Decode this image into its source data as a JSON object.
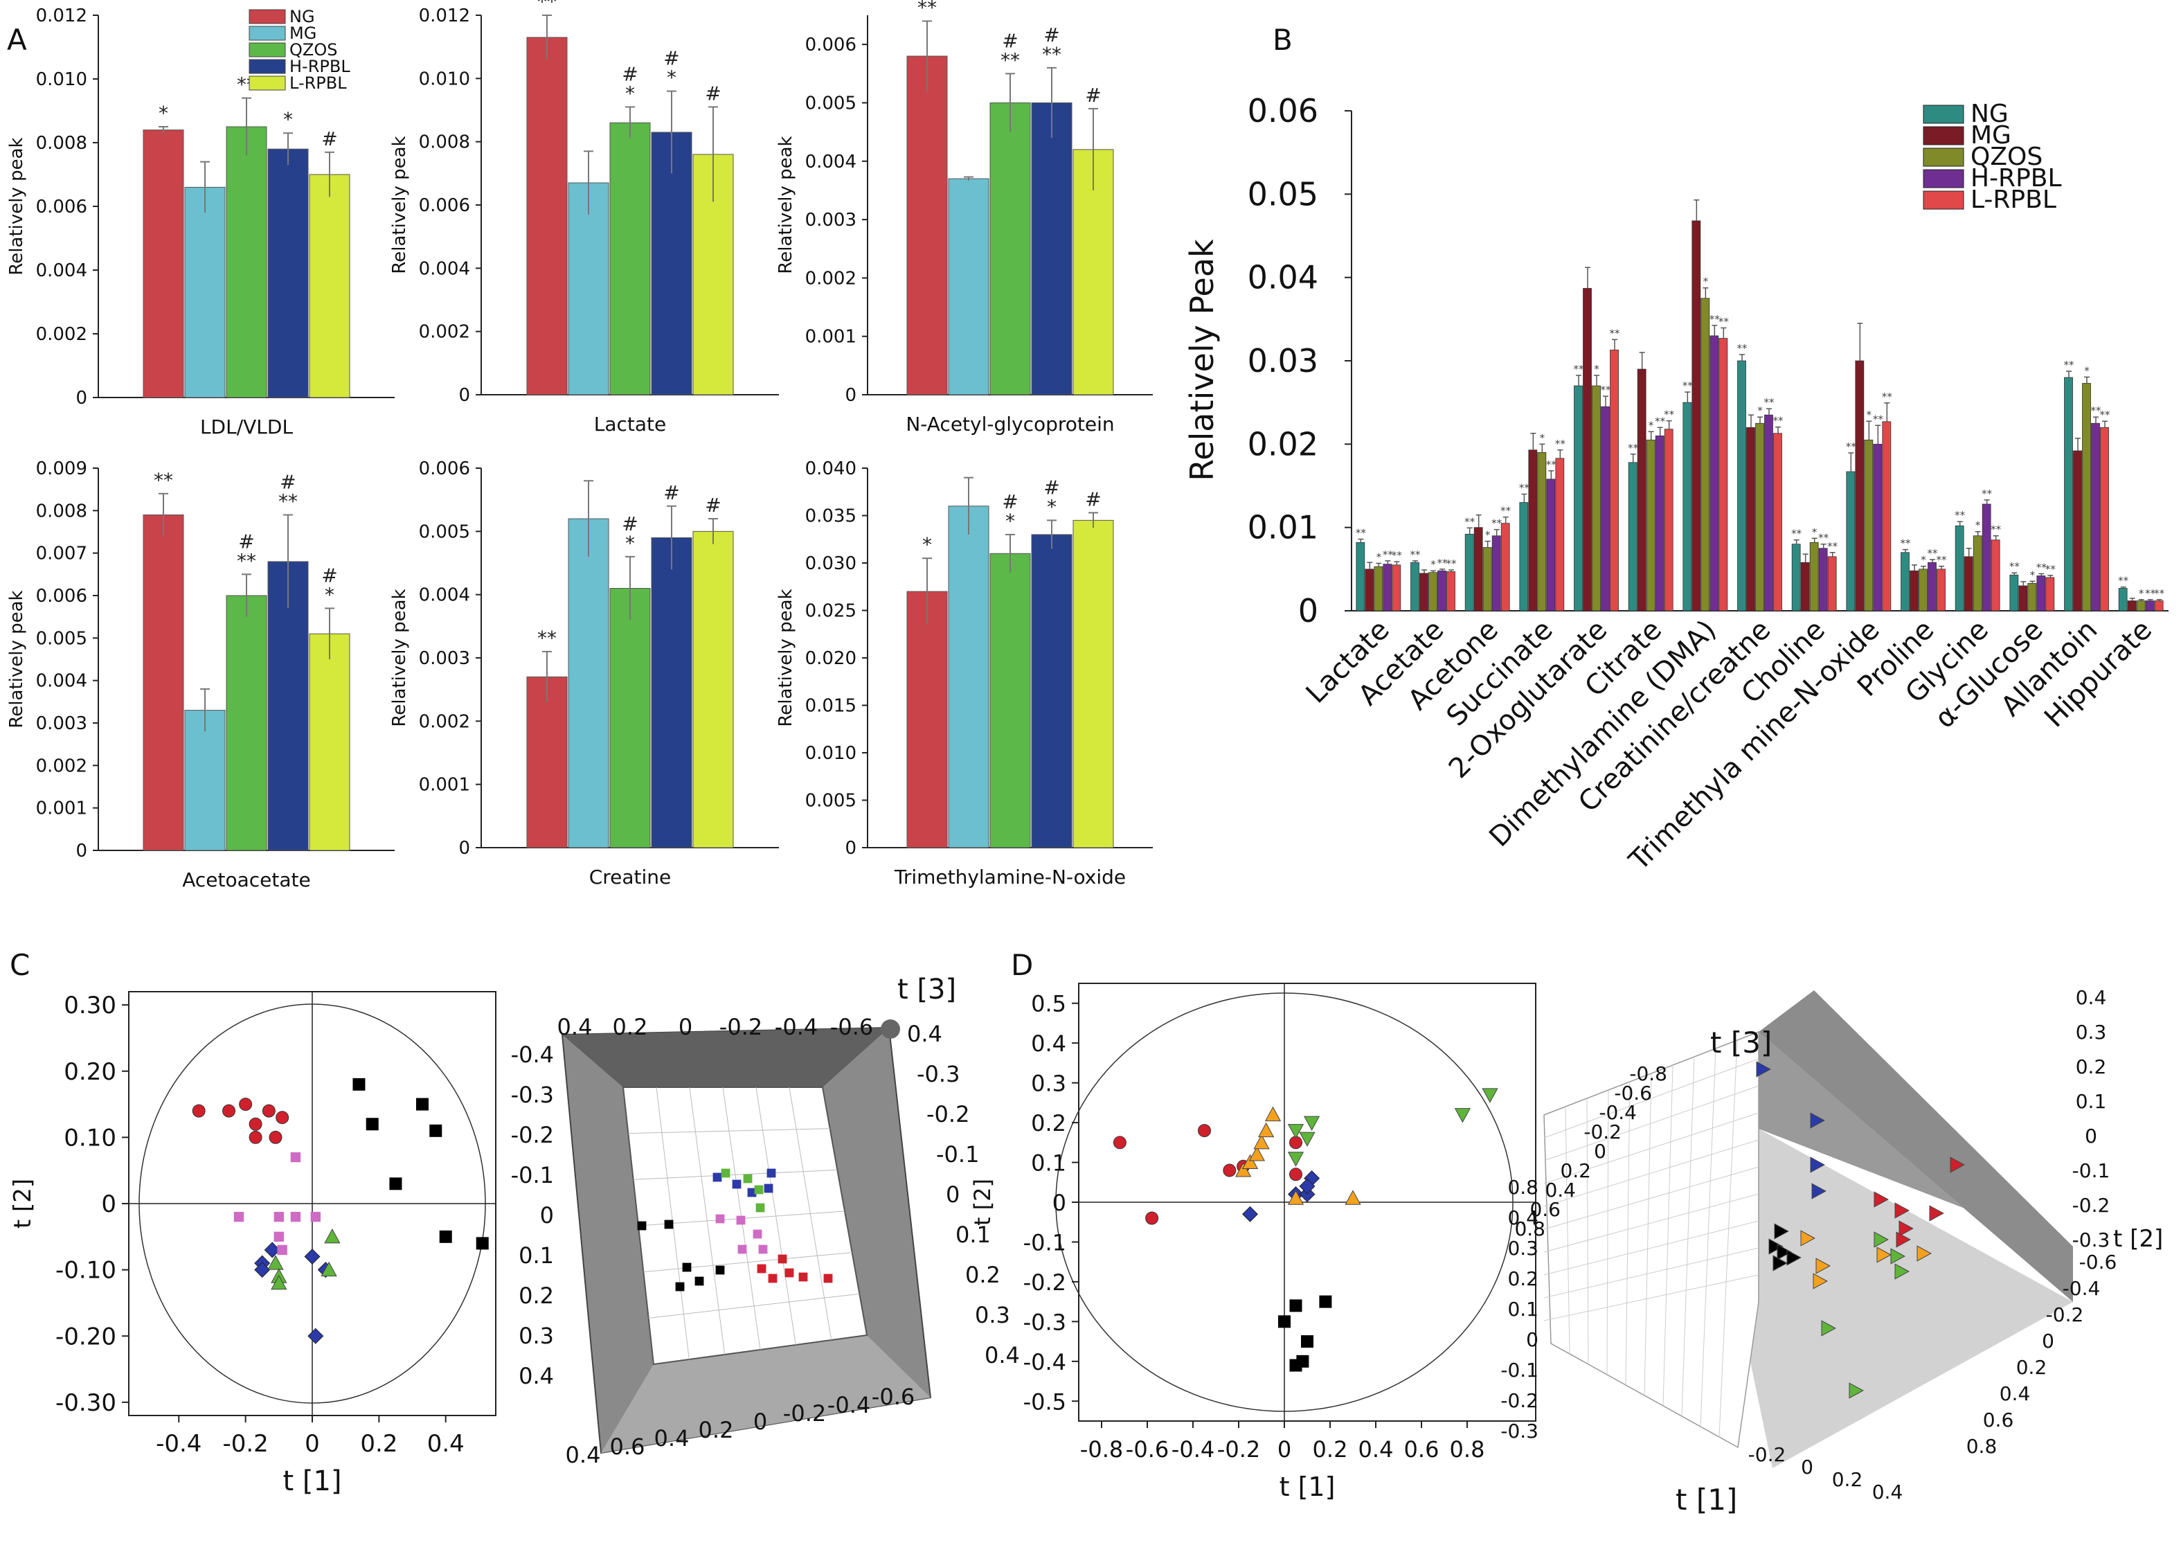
{
  "panel_labels": {
    "A": "A",
    "B": "B",
    "C": "C",
    "D": "D"
  },
  "colors": {
    "A_groups": [
      "#c9434a",
      "#6bbfcf",
      "#5cb848",
      "#27408b",
      "#d5e83c"
    ],
    "B_groups": [
      "#2e8b82",
      "#7b1b25",
      "#808a28",
      "#6f2f92",
      "#e0484a"
    ],
    "score_groups": [
      "#d0202c",
      "#000000",
      "#2b3aa8",
      "#5fb53a",
      "#ce6bc4",
      "#f4a120"
    ]
  },
  "chart_data": [
    {
      "id": "A1",
      "type": "bar",
      "ylabel": "Relatively peak",
      "xlabel": "LDL/VLDL",
      "ylim": [
        0,
        0.012
      ],
      "yticks": [
        "0",
        "0.002",
        "0.004",
        "0.006",
        "0.008",
        "0.010",
        "0.012"
      ],
      "legend": [
        "NG",
        "MG",
        "QZOS",
        "H-RPBL",
        "L-RPBL"
      ],
      "values": [
        0.0084,
        0.0066,
        0.0085,
        0.0078,
        0.007
      ],
      "errors": [
        0.0001,
        0.0008,
        0.0009,
        0.0005,
        0.0007
      ],
      "sig": [
        "*",
        "",
        "**",
        "*",
        "#"
      ]
    },
    {
      "id": "A2",
      "type": "bar",
      "ylabel": "Relatively peak",
      "xlabel": "Lactate",
      "ylim": [
        0,
        0.012
      ],
      "yticks": [
        "0",
        "0.002",
        "0.004",
        "0.006",
        "0.008",
        "0.010",
        "0.012"
      ],
      "values": [
        0.0113,
        0.0067,
        0.0086,
        0.0083,
        0.0076
      ],
      "errors": [
        0.0007,
        0.001,
        0.0005,
        0.0013,
        0.0015
      ],
      "sig": [
        "**",
        "",
        "#|*",
        "#|*",
        "#"
      ]
    },
    {
      "id": "A3",
      "type": "bar",
      "ylabel": "Relatively peak",
      "xlabel": "N-Acetyl-glycoprotein",
      "ylim": [
        0,
        0.0065
      ],
      "yticks": [
        "0",
        "0.001",
        "0.002",
        "0.003",
        "0.004",
        "0.005",
        "0.006"
      ],
      "values": [
        0.0058,
        0.0037,
        0.005,
        0.005,
        0.0042
      ],
      "errors": [
        0.0006,
        3e-05,
        0.0005,
        0.0006,
        0.0007
      ],
      "sig": [
        "**",
        "",
        "#|**",
        "#|**",
        "#"
      ]
    },
    {
      "id": "A4",
      "type": "bar",
      "ylabel": "Relatively peak",
      "xlabel": "Acetoacetate",
      "ylim": [
        0,
        0.009
      ],
      "yticks": [
        "0",
        "0.001",
        "0.002",
        "0.003",
        "0.004",
        "0.005",
        "0.006",
        "0.007",
        "0.008",
        "0.009"
      ],
      "values": [
        0.0079,
        0.0033,
        0.006,
        0.0068,
        0.0051
      ],
      "errors": [
        0.0005,
        0.0005,
        0.0005,
        0.0011,
        0.0006
      ],
      "sig": [
        "**",
        "",
        "#|**",
        "#|**",
        "#|*"
      ]
    },
    {
      "id": "A5",
      "type": "bar",
      "ylabel": "Relatively peak",
      "xlabel": "Creatine",
      "ylim": [
        0,
        0.006
      ],
      "yticks": [
        "0",
        "0.001",
        "0.002",
        "0.003",
        "0.004",
        "0.005",
        "0.006"
      ],
      "values": [
        0.0027,
        0.0052,
        0.0041,
        0.0049,
        0.005
      ],
      "errors": [
        0.0004,
        0.0006,
        0.0005,
        0.0005,
        0.0002
      ],
      "sig": [
        "**",
        "",
        "#|*",
        "#",
        "#"
      ]
    },
    {
      "id": "A6",
      "type": "bar",
      "ylabel": "Relatively peak",
      "xlabel": "Trimethylamine-N-oxide",
      "ylim": [
        0,
        0.04
      ],
      "yticks": [
        "0",
        "0.005",
        "0.010",
        "0.015",
        "0.020",
        "0.025",
        "0.030",
        "0.035",
        "0.040"
      ],
      "values": [
        0.027,
        0.036,
        0.031,
        0.033,
        0.0345
      ],
      "errors": [
        0.0035,
        0.003,
        0.002,
        0.0015,
        0.0008
      ],
      "sig": [
        "*",
        "",
        "#|*",
        "#|*",
        "#"
      ]
    },
    {
      "id": "B",
      "type": "bar",
      "ylabel": "Relatively Peak",
      "ylim": [
        0,
        0.06
      ],
      "yticks": [
        "0",
        "0.01",
        "0.02",
        "0.03",
        "0.04",
        "0.05",
        "0.06"
      ],
      "legend": [
        "NG",
        "MG",
        "QZOS",
        "H-RPBL",
        "L-RPBL"
      ],
      "categories": [
        "Lactate",
        "Acetate",
        "Acetone",
        "Succinate",
        "2-Oxoglutarate",
        "Citrate",
        "Dimethylamine (DMA)",
        "Creatinine/creatne",
        "Choline",
        "Trimethyla mine-N-oxide",
        "Proline",
        "Glycine",
        "α-Glucose",
        "Allantoin",
        "Hippurate"
      ],
      "series": [
        {
          "name": "NG",
          "values": [
            0.0082,
            0.0058,
            0.0092,
            0.013,
            0.027,
            0.0178,
            0.025,
            0.03,
            0.008,
            0.0167,
            0.007,
            0.0102,
            0.0043,
            0.028,
            0.0027
          ]
        },
        {
          "name": "MG",
          "values": [
            0.005,
            0.0045,
            0.01,
            0.0193,
            0.0387,
            0.029,
            0.0468,
            0.022,
            0.0058,
            0.03,
            0.0048,
            0.0065,
            0.003,
            0.0192,
            0.0012
          ]
        },
        {
          "name": "QZOS",
          "values": [
            0.0053,
            0.0046,
            0.0076,
            0.019,
            0.027,
            0.0205,
            0.0375,
            0.0225,
            0.0082,
            0.0205,
            0.005,
            0.009,
            0.0033,
            0.0273,
            0.0012
          ]
        },
        {
          "name": "H-RPBL",
          "values": [
            0.0056,
            0.0048,
            0.009,
            0.0158,
            0.0245,
            0.021,
            0.033,
            0.0235,
            0.0075,
            0.02,
            0.0058,
            0.0128,
            0.0042,
            0.0225,
            0.0012
          ]
        },
        {
          "name": "L-RPBL",
          "values": [
            0.0055,
            0.0047,
            0.0105,
            0.0183,
            0.0313,
            0.0218,
            0.0327,
            0.0213,
            0.0065,
            0.0227,
            0.005,
            0.0085,
            0.004,
            0.022,
            0.0012
          ]
        }
      ],
      "errors": [
        0.0008,
        0.0004,
        0.0015,
        0.002,
        0.0025,
        0.002,
        0.0025,
        0.0015,
        0.001,
        0.0045,
        0.0007,
        0.001,
        0.0005,
        0.0015,
        0.0003
      ],
      "sig_labels": [
        "**",
        "*"
      ]
    },
    {
      "id": "C1",
      "type": "scatter",
      "xlabel": "t [1]",
      "ylabel": "t [2]",
      "xlim": [
        -0.55,
        0.55
      ],
      "ylim": [
        -0.32,
        0.32
      ],
      "xticks": [
        "-0.4",
        "-0.2",
        "0",
        "0.2",
        "0.4"
      ],
      "yticks": [
        "-0.30",
        "-0.20",
        "-0.10",
        "0",
        "0.10",
        "0.20",
        "0.30"
      ],
      "groups": [
        {
          "marker": "circle",
          "points": [
            [
              -0.34,
              0.14
            ],
            [
              -0.25,
              0.14
            ],
            [
              -0.2,
              0.15
            ],
            [
              -0.17,
              0.12
            ],
            [
              -0.13,
              0.14
            ],
            [
              -0.09,
              0.13
            ],
            [
              -0.17,
              0.1
            ],
            [
              -0.11,
              0.1
            ]
          ]
        },
        {
          "marker": "square",
          "points": [
            [
              0.14,
              0.18
            ],
            [
              0.18,
              0.12
            ],
            [
              0.33,
              0.15
            ],
            [
              0.37,
              0.11
            ],
            [
              0.25,
              0.03
            ],
            [
              0.4,
              -0.05
            ],
            [
              0.51,
              -0.06
            ]
          ]
        },
        {
          "marker": "diamond",
          "points": [
            [
              -0.15,
              -0.09
            ],
            [
              -0.12,
              -0.07
            ],
            [
              -0.15,
              -0.1
            ],
            [
              0.0,
              -0.08
            ],
            [
              0.04,
              -0.1
            ],
            [
              0.01,
              -0.2
            ]
          ]
        },
        {
          "marker": "triangle",
          "points": [
            [
              -0.11,
              -0.09
            ],
            [
              -0.1,
              -0.11
            ],
            [
              -0.1,
              -0.12
            ],
            [
              0.06,
              -0.05
            ],
            [
              0.05,
              -0.1
            ]
          ]
        },
        {
          "marker": "square-small",
          "points": [
            [
              -0.22,
              -0.02
            ],
            [
              -0.1,
              -0.02
            ],
            [
              -0.05,
              0.07
            ],
            [
              -0.05,
              -0.02
            ],
            [
              0.01,
              -0.02
            ],
            [
              -0.1,
              -0.05
            ],
            [
              -0.09,
              -0.07
            ]
          ]
        }
      ]
    },
    {
      "id": "C2",
      "type": "scatter3d",
      "axis_label": "t [3]",
      "top_ticks": [
        "0.4",
        "0.2",
        "0",
        "-0.2",
        "-0.4",
        "-0.6"
      ],
      "left_ticks": [
        "-0.4",
        "-0.3",
        "-0.2",
        "-0.1",
        "0",
        "0.1",
        "0.2",
        "0.3",
        "0.4"
      ],
      "right_ticks": [
        "0.4",
        "-0.3",
        "-0.2",
        "-0.1",
        "0",
        "0.1",
        "0.2",
        "0.3",
        "0.4"
      ],
      "bottom_ticks": [
        "0.4",
        "0.6",
        "0.4",
        "0.2",
        "0",
        "-0.2",
        "-0.4",
        "-0.6"
      ]
    },
    {
      "id": "D1",
      "type": "scatter",
      "xlabel": "t [1]",
      "ylabel": "t [2]",
      "xlim": [
        -0.9,
        1.1
      ],
      "ylim": [
        -0.55,
        0.55
      ],
      "xticks": [
        "-0.8",
        "-0.6",
        "-0.4",
        "-0.2",
        "0",
        "0.2",
        "0.4",
        "0.6",
        "0.8"
      ],
      "yticks": [
        "-0.5",
        "-0.4",
        "-0.3",
        "-0.2",
        "-0.1",
        "0",
        "0.1",
        "0.2",
        "0.3",
        "0.4",
        "0.5"
      ],
      "groups": [
        {
          "marker": "circle",
          "points": [
            [
              -0.72,
              0.15
            ],
            [
              -0.58,
              -0.04
            ],
            [
              -0.35,
              0.18
            ],
            [
              -0.24,
              0.08
            ],
            [
              -0.18,
              0.09
            ],
            [
              0.05,
              0.15
            ],
            [
              0.05,
              0.07
            ]
          ]
        },
        {
          "marker": "square",
          "points": [
            [
              0.0,
              -0.3
            ],
            [
              0.05,
              -0.26
            ],
            [
              0.1,
              -0.35
            ],
            [
              0.08,
              -0.4
            ],
            [
              0.05,
              -0.41
            ],
            [
              0.18,
              -0.25
            ]
          ]
        },
        {
          "marker": "diamond",
          "points": [
            [
              -0.15,
              -0.03
            ],
            [
              0.05,
              0.02
            ],
            [
              0.1,
              0.02
            ],
            [
              0.12,
              0.06
            ],
            [
              0.1,
              0.04
            ]
          ]
        },
        {
          "marker": "triangle-down",
          "points": [
            [
              0.78,
              0.22
            ],
            [
              0.9,
              0.27
            ],
            [
              0.05,
              0.11
            ],
            [
              0.1,
              0.16
            ],
            [
              0.05,
              0.18
            ],
            [
              0.12,
              0.2
            ]
          ]
        },
        {
          "marker": "triangle",
          "points": [
            [
              -0.18,
              0.08
            ],
            [
              -0.15,
              0.1
            ],
            [
              -0.12,
              0.12
            ],
            [
              -0.1,
              0.15
            ],
            [
              -0.08,
              0.18
            ],
            [
              -0.05,
              0.22
            ],
            [
              0.3,
              0.01
            ],
            [
              0.05,
              0.01
            ]
          ]
        }
      ]
    },
    {
      "id": "D2",
      "type": "scatter3d",
      "axis_labels": [
        "t [3]",
        "t [2]",
        "t [1]"
      ],
      "t3_ticks": [
        "-0.8",
        "-0.6",
        "-0.4",
        "-0.2",
        "0",
        "0.2",
        "0.4",
        "0.6",
        "0.8"
      ],
      "right_ticks": [
        "0.4",
        "0.3",
        "0.2",
        "0.1",
        "0",
        "-0.1",
        "-0.2",
        "-0.3"
      ],
      "left_ticks": [
        "0.8",
        "0.4",
        "0.3",
        "0.2",
        "0.1",
        "0",
        "-0.1",
        "-0.2",
        "-0.3"
      ],
      "front_ticks": [
        "-0.6",
        "-0.4",
        "-0.2",
        "0",
        "0.2",
        "0.4",
        "0.6",
        "0.8"
      ],
      "bottom_ticks": [
        "-0.2",
        "0",
        "0.2",
        "0.4"
      ]
    }
  ]
}
